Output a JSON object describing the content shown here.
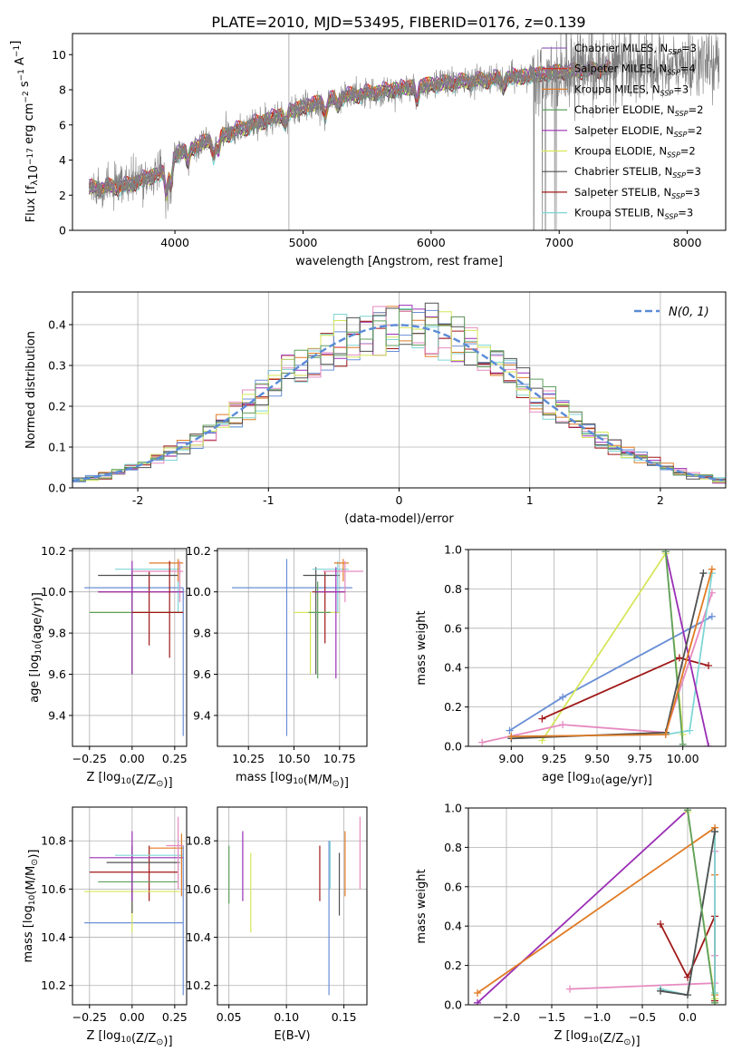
{
  "figure_title": "PLATE=2010, MJD=53495, FIBERID=0176, z=0.139",
  "colors": {
    "Chabrier MILES": "#9467bd",
    "Salpeter MILES": "#d62728",
    "Kroupa MILES": "#e07b25",
    "Chabrier ELODIE": "#5f9f5f",
    "Salpeter ELODIE": "#9a2fb5",
    "Kroupa ELODIE": "#d6e65a",
    "Chabrier STELIB": "#505050",
    "Salpeter STELIB": "#a01818",
    "Kroupa STELIB": "#7fd6d6",
    "pink": "#e68ac0",
    "blue": "#6a8fd6"
  },
  "chart_data": [
    {
      "id": "spectrum",
      "type": "line",
      "xlabel": "wavelength [Angstrom, rest frame]",
      "ylabel_parts": [
        "Flux [f",
        "λ",
        "10",
        "−17",
        " erg cm",
        "−2",
        " s",
        "−1",
        " A",
        "−1",
        "]"
      ],
      "xlim": [
        3200,
        8300
      ],
      "ylim": [
        0,
        11.2
      ],
      "xticks": [
        4000,
        5000,
        6000,
        7000,
        8000
      ],
      "yticks": [
        0,
        2,
        4,
        6,
        8,
        10
      ],
      "legend": [
        {
          "name": "Chabrier MILES",
          "n": "3"
        },
        {
          "name": "Salpeter MILES",
          "n": "4"
        },
        {
          "name": "Kroupa MILES",
          "n": "3"
        },
        {
          "name": "Chabrier ELODIE",
          "n": "2"
        },
        {
          "name": "Salpeter ELODIE",
          "n": "2"
        },
        {
          "name": "Kroupa ELODIE",
          "n": "2"
        },
        {
          "name": "Chabrier STELIB",
          "n": "3"
        },
        {
          "name": "Salpeter STELIB",
          "n": "3"
        },
        {
          "name": "Kroupa STELIB",
          "n": "3"
        }
      ],
      "legend_sub": "SSP",
      "continuum_knots": [
        [
          3350,
          2.4
        ],
        [
          3600,
          2.5
        ],
        [
          3900,
          3.3
        ],
        [
          4000,
          4.3
        ],
        [
          4300,
          5.2
        ],
        [
          4600,
          6.0
        ],
        [
          5000,
          7.0
        ],
        [
          5300,
          7.6
        ],
        [
          5600,
          7.9
        ],
        [
          6000,
          8.3
        ],
        [
          6500,
          8.6
        ],
        [
          7000,
          9.0
        ],
        [
          7500,
          9.2
        ],
        [
          8000,
          9.4
        ],
        [
          8200,
          9.5
        ]
      ],
      "data_x_range": [
        3330,
        8250
      ],
      "model_x_range": [
        3330,
        7400
      ]
    },
    {
      "id": "residuals",
      "type": "step",
      "xlabel": "(data-model)/error",
      "ylabel": "Normed distribution",
      "xlim": [
        -2.5,
        2.5
      ],
      "ylim": [
        0,
        0.48
      ],
      "xticks": [
        -2,
        -1,
        0,
        1,
        2
      ],
      "yticks": [
        0.0,
        0.1,
        0.2,
        0.3,
        0.4
      ],
      "legend_label": "N(0, 1)",
      "gaussian": {
        "mu": 0,
        "sigma": 1
      }
    },
    {
      "id": "age_vs_Z",
      "type": "errorbar",
      "xlabel": "Z [log10(Z/Z⊙)]",
      "ylabel": "age  [log10(age/yr)]",
      "xlim": [
        -0.35,
        0.32
      ],
      "ylim": [
        9.25,
        10.21
      ],
      "xticks": [
        -0.25,
        0.0,
        0.25
      ],
      "xtick_labels": [
        "−0.25",
        "0.00",
        "0.25"
      ],
      "yticks": [
        9.4,
        9.6,
        9.8,
        10.0,
        10.2
      ],
      "points": [
        {
          "c": "blue",
          "x": 0.3,
          "y": 10.02,
          "xe": [
            -0.28,
            0.3
          ],
          "ye": [
            9.3,
            10.02
          ]
        },
        {
          "c": "Salpeter STELIB",
          "x": 0.1,
          "y": 10.0,
          "xe": [
            -0.2,
            0.3
          ],
          "ye": [
            9.74,
            10.1
          ]
        },
        {
          "c": "Kroupa ELODIE",
          "x": 0.0,
          "y": 9.9,
          "xe": [
            -0.25,
            0.3
          ],
          "ye": [
            9.6,
            10.0
          ]
        },
        {
          "c": "Chabrier STELIB",
          "x": 0.0,
          "y": 10.08,
          "xe": [
            -0.2,
            0.27
          ],
          "ye": [
            9.6,
            10.1
          ]
        },
        {
          "c": "Kroupa STELIB",
          "x": 0.27,
          "y": 10.11,
          "xe": [
            -0.1,
            0.28
          ],
          "ye": [
            9.9,
            10.15
          ]
        },
        {
          "c": "Kroupa MILES",
          "x": 0.27,
          "y": 10.14,
          "xe": [
            0.1,
            0.3
          ],
          "ye": [
            10.05,
            10.16
          ]
        },
        {
          "c": "pink",
          "x": 0.28,
          "y": 10.1,
          "xe": [
            0.0,
            0.3
          ],
          "ye": [
            9.95,
            10.15
          ]
        },
        {
          "c": "Chabrier ELODIE",
          "x": 0.0,
          "y": 9.9,
          "xe": [
            -0.25,
            0.3
          ],
          "ye": [
            9.6,
            10.0
          ]
        },
        {
          "c": "Salpeter ELODIE",
          "x": 0.0,
          "y": 10.0,
          "xe": [
            -0.2,
            0.3
          ],
          "ye": [
            9.6,
            10.15
          ]
        },
        {
          "c": "Salpeter STELIB",
          "x": 0.22,
          "y": 9.9,
          "xe": [
            0.0,
            0.3
          ],
          "ye": [
            9.68,
            10.15
          ]
        }
      ]
    },
    {
      "id": "age_vs_mass",
      "type": "errorbar",
      "xlabel": "mass [log10(M/M⊙)]",
      "ylabel": "",
      "xlim": [
        10.08,
        10.9
      ],
      "ylim": [
        9.25,
        10.21
      ],
      "xticks": [
        10.25,
        10.5,
        10.75
      ],
      "xtick_labels": [
        "10.25",
        "10.50",
        "10.75"
      ],
      "yticks": [
        9.4,
        9.6,
        9.8,
        10.0,
        10.2
      ],
      "points": [
        {
          "c": "blue",
          "x": 10.46,
          "y": 10.02,
          "xe": [
            10.16,
            10.82
          ],
          "ye": [
            9.3,
            10.16
          ]
        },
        {
          "c": "Salpeter STELIB",
          "x": 10.67,
          "y": 10.0,
          "xe": [
            10.6,
            10.78
          ],
          "ye": [
            9.75,
            10.1
          ]
        },
        {
          "c": "Kroupa ELODIE",
          "x": 10.59,
          "y": 9.9,
          "xe": [
            10.5,
            10.75
          ],
          "ye": [
            9.6,
            10.0
          ]
        },
        {
          "c": "Chabrier STELIB",
          "x": 10.62,
          "y": 10.08,
          "xe": [
            10.55,
            10.75
          ],
          "ye": [
            9.6,
            10.12
          ]
        },
        {
          "c": "Kroupa STELIB",
          "x": 10.74,
          "y": 10.11,
          "xe": [
            10.6,
            10.8
          ],
          "ye": [
            9.9,
            10.15
          ]
        },
        {
          "c": "Kroupa MILES",
          "x": 10.77,
          "y": 10.14,
          "xe": [
            10.72,
            10.8
          ],
          "ye": [
            10.05,
            10.16
          ]
        },
        {
          "c": "pink",
          "x": 10.78,
          "y": 10.1,
          "xe": [
            10.66,
            10.88
          ],
          "ye": [
            9.95,
            10.15
          ]
        },
        {
          "c": "Chabrier ELODIE",
          "x": 10.63,
          "y": 9.9,
          "xe": [
            10.58,
            10.7
          ],
          "ye": [
            9.58,
            10.05
          ]
        },
        {
          "c": "Salpeter ELODIE",
          "x": 10.73,
          "y": 10.0,
          "xe": [
            10.62,
            10.78
          ],
          "ye": [
            9.58,
            10.12
          ]
        }
      ]
    },
    {
      "id": "weight_vs_age",
      "type": "line",
      "xlabel": "age  [log10(age/yr)]",
      "ylabel": "mass weight",
      "xlim": [
        8.75,
        10.25
      ],
      "ylim": [
        0,
        1.0
      ],
      "xticks": [
        9.0,
        9.25,
        9.5,
        9.75,
        10.0
      ],
      "xtick_labels": [
        "9.00",
        "9.25",
        "9.50",
        "9.75",
        "10.00"
      ],
      "yticks": [
        0.0,
        0.2,
        0.4,
        0.6,
        0.8,
        1.0
      ],
      "series": [
        {
          "c": "blue",
          "x": [
            8.99,
            9.3,
            10.17
          ],
          "y": [
            0.08,
            0.25,
            0.66
          ]
        },
        {
          "c": "Kroupa ELODIE",
          "x": [
            9.18,
            9.9,
            10.0
          ],
          "y": [
            0.03,
            0.98,
            0.06
          ]
        },
        {
          "c": "Salpeter STELIB",
          "x": [
            9.18,
            9.98,
            10.15
          ],
          "y": [
            0.14,
            0.45,
            0.41
          ]
        },
        {
          "c": "pink",
          "x": [
            8.83,
            9.3,
            9.9,
            10.17
          ],
          "y": [
            0.02,
            0.11,
            0.07,
            0.78
          ]
        },
        {
          "c": "Kroupa STELIB",
          "x": [
            9.0,
            9.9,
            10.04,
            10.17
          ],
          "y": [
            0.05,
            0.06,
            0.08,
            0.88
          ]
        },
        {
          "c": "Salpeter ELODIE",
          "x": [
            9.9,
            10.15
          ],
          "y": [
            0.99,
            0.0
          ]
        },
        {
          "c": "Chabrier ELODIE",
          "x": [
            9.9,
            10.0
          ],
          "y": [
            0.99,
            0.01
          ]
        },
        {
          "c": "Chabrier STELIB",
          "x": [
            9.0,
            9.9,
            10.12
          ],
          "y": [
            0.04,
            0.07,
            0.88
          ]
        },
        {
          "c": "Kroupa MILES",
          "x": [
            9.0,
            9.9,
            10.17
          ],
          "y": [
            0.05,
            0.06,
            0.9
          ]
        }
      ]
    },
    {
      "id": "mass_vs_Z",
      "type": "errorbar",
      "xlabel": "Z [log10(Z/Z⊙)]",
      "ylabel": "mass [log10(M/M⊙)]",
      "xlim": [
        -0.35,
        0.32
      ],
      "ylim": [
        10.12,
        10.94
      ],
      "xticks": [
        -0.25,
        0.0,
        0.25
      ],
      "xtick_labels": [
        "−0.25",
        "0.00",
        "0.25"
      ],
      "yticks": [
        10.2,
        10.4,
        10.6,
        10.8
      ],
      "points": [
        {
          "c": "blue",
          "x": 0.3,
          "y": 10.46,
          "xe": [
            -0.28,
            0.3
          ],
          "ye": [
            10.16,
            10.78
          ]
        },
        {
          "c": "Salpeter STELIB",
          "x": 0.1,
          "y": 10.67,
          "xe": [
            -0.25,
            0.27
          ],
          "ye": [
            10.55,
            10.78
          ]
        },
        {
          "c": "Kroupa ELODIE",
          "x": 0.0,
          "y": 10.59,
          "xe": [
            -0.28,
            0.28
          ],
          "ye": [
            10.42,
            10.75
          ]
        },
        {
          "c": "Chabrier ELODIE",
          "x": 0.0,
          "y": 10.63,
          "xe": [
            -0.2,
            0.27
          ],
          "ye": [
            10.55,
            10.75
          ]
        },
        {
          "c": "Chabrier STELIB",
          "x": 0.0,
          "y": 10.71,
          "xe": [
            -0.15,
            0.28
          ],
          "ye": [
            10.5,
            10.78
          ]
        },
        {
          "c": "Salpeter ELODIE",
          "x": 0.0,
          "y": 10.73,
          "xe": [
            -0.25,
            0.3
          ],
          "ye": [
            10.55,
            10.84
          ]
        },
        {
          "c": "Kroupa STELIB",
          "x": 0.27,
          "y": 10.74,
          "xe": [
            -0.1,
            0.3
          ],
          "ye": [
            10.6,
            10.8
          ]
        },
        {
          "c": "Kroupa MILES",
          "x": 0.29,
          "y": 10.77,
          "xe": [
            0.1,
            0.3
          ],
          "ye": [
            10.57,
            10.83
          ]
        },
        {
          "c": "pink",
          "x": 0.27,
          "y": 10.78,
          "xe": [
            0.2,
            0.3
          ],
          "ye": [
            10.6,
            10.9
          ]
        }
      ]
    },
    {
      "id": "mass_vs_ebv",
      "type": "errorbar",
      "xlabel": "E(B-V)",
      "ylabel": "",
      "xlim": [
        0.04,
        0.17
      ],
      "ylim": [
        10.12,
        10.94
      ],
      "xticks": [
        0.05,
        0.1,
        0.15
      ],
      "xtick_labels": [
        "0.05",
        "0.10",
        "0.15"
      ],
      "yticks": [
        10.2,
        10.4,
        10.6,
        10.8
      ],
      "points": [
        {
          "c": "Chabrier ELODIE",
          "x": 0.05,
          "y": 10.66,
          "xe": [
            0.05,
            0.05
          ],
          "ye": [
            10.54,
            10.78
          ]
        },
        {
          "c": "Salpeter ELODIE",
          "x": 0.062,
          "y": 10.7,
          "xe": [
            0.062,
            0.062
          ],
          "ye": [
            10.55,
            10.84
          ]
        },
        {
          "c": "Kroupa ELODIE",
          "x": 0.069,
          "y": 10.58,
          "xe": [
            0.069,
            0.069
          ],
          "ye": [
            10.42,
            10.75
          ]
        },
        {
          "c": "Salpeter STELIB",
          "x": 0.129,
          "y": 10.66,
          "xe": [
            0.129,
            0.129
          ],
          "ye": [
            10.55,
            10.78
          ]
        },
        {
          "c": "blue",
          "x": 0.137,
          "y": 10.46,
          "xe": [
            0.137,
            0.137
          ],
          "ye": [
            10.16,
            10.8
          ]
        },
        {
          "c": "Kroupa STELIB",
          "x": 0.138,
          "y": 10.7,
          "xe": [
            0.138,
            0.138
          ],
          "ye": [
            10.6,
            10.8
          ]
        },
        {
          "c": "Chabrier STELIB",
          "x": 0.146,
          "y": 10.62,
          "xe": [
            0.146,
            0.146
          ],
          "ye": [
            10.49,
            10.75
          ]
        },
        {
          "c": "Kroupa MILES",
          "x": 0.151,
          "y": 10.7,
          "xe": [
            0.151,
            0.151
          ],
          "ye": [
            10.57,
            10.84
          ]
        },
        {
          "c": "pink",
          "x": 0.164,
          "y": 10.75,
          "xe": [
            0.164,
            0.164
          ],
          "ye": [
            10.6,
            10.9
          ]
        }
      ]
    },
    {
      "id": "weight_vs_Z",
      "type": "line",
      "xlabel": "Z [log10(Z/Z⊙)]",
      "ylabel": "mass weight",
      "xlim": [
        -2.42,
        0.42
      ],
      "ylim": [
        0,
        1.0
      ],
      "xticks": [
        -2.0,
        -1.5,
        -1.0,
        -0.5,
        0.0
      ],
      "xtick_labels": [
        "−2.0",
        "−1.5",
        "−1.0",
        "−0.5",
        "0.0"
      ],
      "yticks": [
        0.0,
        0.2,
        0.4,
        0.6,
        0.8,
        1.0
      ],
      "series": [
        {
          "c": "Salpeter ELODIE",
          "x": [
            -2.32,
            0.0
          ],
          "y": [
            0.01,
            0.99
          ]
        },
        {
          "c": "Kroupa MILES",
          "x": [
            -2.32,
            0.3,
            0.3,
            0.3
          ],
          "y": [
            0.06,
            0.9,
            0.66,
            0.05
          ]
        },
        {
          "c": "pink",
          "x": [
            -1.3,
            0.3,
            0.3,
            0.3
          ],
          "y": [
            0.08,
            0.11,
            0.25,
            0.78
          ]
        },
        {
          "c": "Salpeter STELIB",
          "x": [
            -0.3,
            0.0,
            0.3,
            0.3
          ],
          "y": [
            0.41,
            0.14,
            0.45,
            0.02
          ]
        },
        {
          "c": "Kroupa ELODIE",
          "x": [
            0.0,
            0.3,
            0.3
          ],
          "y": [
            0.98,
            0.03,
            0.06
          ]
        },
        {
          "c": "Kroupa STELIB",
          "x": [
            -0.3,
            0.0,
            0.3,
            0.3
          ],
          "y": [
            0.08,
            0.05,
            0.88,
            0.06
          ]
        },
        {
          "c": "Chabrier STELIB",
          "x": [
            -0.3,
            0.0,
            0.3
          ],
          "y": [
            0.07,
            0.05,
            0.88
          ]
        },
        {
          "c": "Chabrier ELODIE",
          "x": [
            0.0,
            0.3
          ],
          "y": [
            0.99,
            0.01
          ]
        }
      ]
    }
  ]
}
